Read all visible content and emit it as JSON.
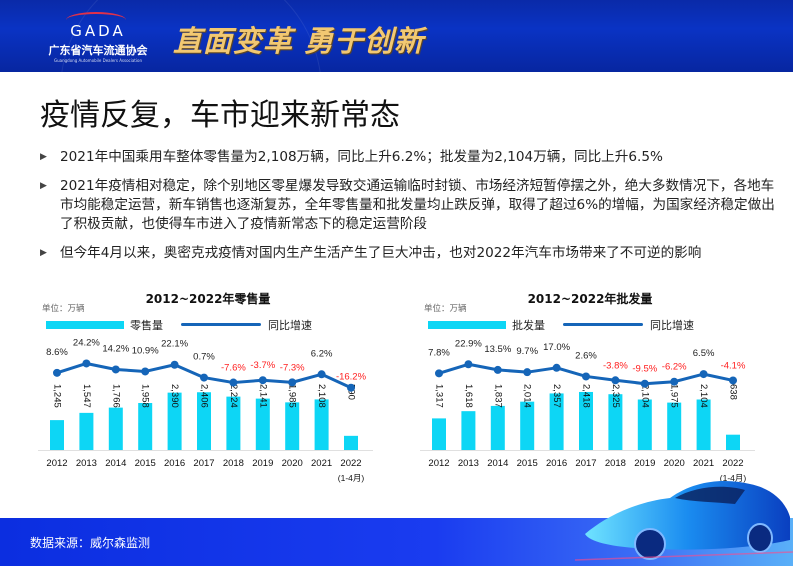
{
  "header": {
    "logo_text": "GADA",
    "org_name": "广东省汽车流通协会",
    "org_name_en": "Guangdong Automobile Dealers Association",
    "slogan": "直面变革 勇于创新"
  },
  "page_title": "疫情反复，车市迎来新常态",
  "bullets": [
    "2021年中国乘用车整体零售量为2,108万辆，同比上升6.2%；批发量为2,104万辆，同比上升6.5%",
    "2021年疫情相对稳定，除个别地区零星爆发导致交通运输临时封锁、市场经济短暂停摆之外，绝大多数情况下，各地车市均能稳定运营，新车销售也逐渐复苏，全年零售量和批发量均止跌反弹，取得了超过6%的增幅，为国家经济稳定做出了积极贡献，也使得车市进入了疫情新常态下的稳定运营阶段",
    "但今年4月以来，奥密克戎疫情对国内生产生活产生了巨大冲击，也对2022年汽车市场带来了不可逆的影响"
  ],
  "bullet_icon": "triangle-right-icon",
  "colors": {
    "bar": "#0dd6f5",
    "line": "#1565b8",
    "positive_label": "#222222",
    "negative_label": "#ff2020",
    "header_bg": "#0a2aa8",
    "slogan": "#f2c872"
  },
  "footer": {
    "source": "数据来源：威尔森监测"
  },
  "chart_data": [
    {
      "type": "bar+line",
      "title": "2012~2022年零售量",
      "unit_label": "单位：万辆",
      "legend": [
        "零售量",
        "同比增速"
      ],
      "categories": [
        "2012",
        "2013",
        "2014",
        "2015",
        "2016",
        "2017",
        "2018",
        "2019",
        "2020",
        "2021",
        "2022"
      ],
      "category_note": "(1-4月)",
      "series": [
        {
          "name": "零售量",
          "type": "bar",
          "values": [
            1245,
            1547,
            1766,
            1958,
            2390,
            2406,
            2224,
            2141,
            1985,
            2108,
            590
          ],
          "labels": [
            "1,245",
            "1,547",
            "1,766",
            "1,958",
            "2,390",
            "2,406",
            "2,224",
            "2,141",
            "1,985",
            "2,108",
            "590"
          ]
        },
        {
          "name": "同比增速",
          "type": "line",
          "values": [
            8.6,
            24.2,
            14.2,
            10.9,
            22.1,
            0.7,
            -7.6,
            -3.7,
            -7.3,
            6.2,
            -16.2
          ],
          "labels": [
            "8.6%",
            "24.2%",
            "14.2%",
            "10.9%",
            "22.1%",
            "0.7%",
            "-7.6%",
            "-3.7%",
            "-7.3%",
            "6.2%",
            "-16.2%"
          ]
        }
      ],
      "xlabel": "",
      "ylabel": ""
    },
    {
      "type": "bar+line",
      "title": "2012~2022年批发量",
      "unit_label": "单位：万辆",
      "legend": [
        "批发量",
        "同比增速"
      ],
      "categories": [
        "2012",
        "2013",
        "2014",
        "2015",
        "2016",
        "2017",
        "2018",
        "2019",
        "2020",
        "2021",
        "2022"
      ],
      "category_note": "(1-4月)",
      "series": [
        {
          "name": "批发量",
          "type": "bar",
          "values": [
            1317,
            1618,
            1837,
            2014,
            2357,
            2418,
            2325,
            2104,
            1975,
            2104,
            638
          ],
          "labels": [
            "1,317",
            "1,618",
            "1,837",
            "2,014",
            "2,357",
            "2,418",
            "2,325",
            "2,104",
            "1,975",
            "2,104",
            "638"
          ]
        },
        {
          "name": "同比增速",
          "type": "line",
          "values": [
            7.8,
            22.9,
            13.5,
            9.7,
            17.0,
            2.6,
            -3.8,
            -9.5,
            -6.2,
            6.5,
            -4.1
          ],
          "labels": [
            "7.8%",
            "22.9%",
            "13.5%",
            "9.7%",
            "17.0%",
            "2.6%",
            "-3.8%",
            "-9.5%",
            "-6.2%",
            "6.5%",
            "-4.1%"
          ]
        }
      ],
      "xlabel": "",
      "ylabel": ""
    }
  ]
}
